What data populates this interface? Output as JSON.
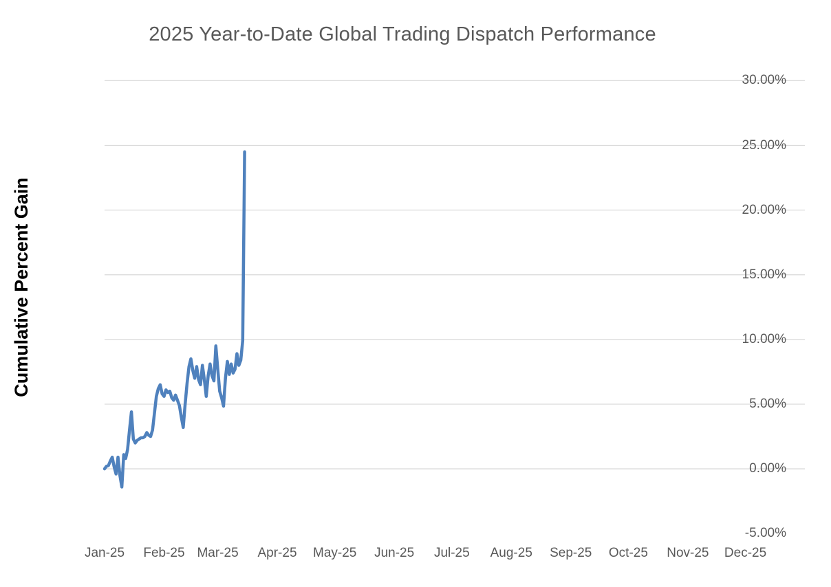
{
  "chart_data": {
    "type": "line",
    "title": "2025 Year-to-Date Global Trading Dispatch Performance",
    "ylabel": "Cumulative Percent Gain",
    "xlabel": "",
    "ylim": [
      -5,
      30
    ],
    "grid": true,
    "legend_position": "none",
    "y_ticks": [
      {
        "value": 30,
        "label": "30.00%",
        "gridline": true
      },
      {
        "value": 25,
        "label": "25.00%",
        "gridline": true
      },
      {
        "value": 20,
        "label": "20.00%",
        "gridline": true
      },
      {
        "value": 15,
        "label": "15.00%",
        "gridline": true
      },
      {
        "value": 10,
        "label": "10.00%",
        "gridline": true
      },
      {
        "value": 5,
        "label": "5.00%",
        "gridline": true
      },
      {
        "value": 0,
        "label": "0.00%",
        "gridline": true
      },
      {
        "value": -5,
        "label": "-5.00%",
        "gridline": false
      }
    ],
    "x_ticks": [
      {
        "label": "Jan-25",
        "day": 0
      },
      {
        "label": "Feb-25",
        "day": 31
      },
      {
        "label": "Mar-25",
        "day": 59
      },
      {
        "label": "Apr-25",
        "day": 90
      },
      {
        "label": "May-25",
        "day": 120
      },
      {
        "label": "Jun-25",
        "day": 151
      },
      {
        "label": "Jul-25",
        "day": 181
      },
      {
        "label": "Aug-25",
        "day": 212
      },
      {
        "label": "Sep-25",
        "day": 243
      },
      {
        "label": "Oct-25",
        "day": 273
      },
      {
        "label": "Nov-25",
        "day": 304
      },
      {
        "label": "Dec-25",
        "day": 334
      }
    ],
    "x_axis_span_days": 365,
    "series": [
      {
        "name": "Cumulative Percent Gain",
        "color": "#4F81BD",
        "start_day": 0,
        "cadence_days": 1,
        "values_pct": [
          0.0,
          0.2,
          0.25,
          0.6,
          0.9,
          0.15,
          -0.4,
          0.9,
          -0.5,
          -1.4,
          1.1,
          0.8,
          1.5,
          3.0,
          4.4,
          2.3,
          2.0,
          2.2,
          2.3,
          2.4,
          2.4,
          2.5,
          2.8,
          2.6,
          2.5,
          3.0,
          4.3,
          5.6,
          6.2,
          6.5,
          5.8,
          5.6,
          6.1,
          5.9,
          6.0,
          5.5,
          5.3,
          5.7,
          5.3,
          4.9,
          4.0,
          3.2,
          5.0,
          6.6,
          7.9,
          8.5,
          7.6,
          7.0,
          7.9,
          6.9,
          6.5,
          8.0,
          6.9,
          5.6,
          7.2,
          8.1,
          7.2,
          6.8,
          9.5,
          7.7,
          6.0,
          5.5,
          4.85,
          7.0,
          8.3,
          7.3,
          8.1,
          7.4,
          7.7,
          8.9,
          8.0,
          8.4,
          9.9,
          24.5
        ]
      }
    ],
    "colors": {
      "line": "#4F81BD",
      "gridline": "#D9D9D9",
      "title_text": "#595959",
      "tick_text": "#595959",
      "axis_title_text": "#000000",
      "background": "#FFFFFF"
    }
  }
}
